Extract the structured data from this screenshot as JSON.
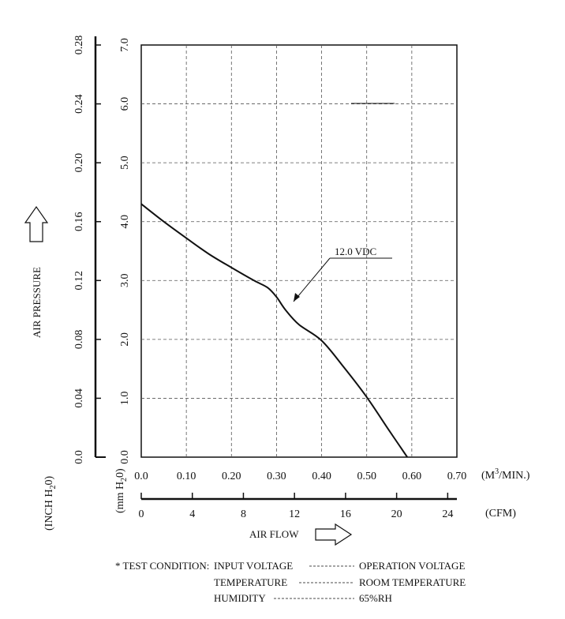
{
  "chart_data": {
    "type": "line",
    "xlabel": "AIR FLOW",
    "ylabel": "AIR PRESSURE",
    "x_unit_primary": "(M3/MIN.)",
    "x_unit_secondary": "(CFM)",
    "y_unit_primary": "(mm H2O)",
    "y_unit_secondary": "(INCH H2O)",
    "xlim": [
      0,
      0.7
    ],
    "ylim": [
      0,
      7.0
    ],
    "x_ticks": [
      "0.0",
      "0.10",
      "0.20",
      "0.30",
      "0.40",
      "0.50",
      "0.60",
      "0.70"
    ],
    "x_ticks_cfm": [
      "0",
      "4",
      "8",
      "12",
      "16",
      "20",
      "24"
    ],
    "y_ticks_mm": [
      "0.0",
      "1.0",
      "2.0",
      "3.0",
      "4.0",
      "5.0",
      "6.0",
      "7.0"
    ],
    "y_ticks_inch": [
      "0.0",
      "0.04",
      "0.08",
      "0.12",
      "0.16",
      "0.20",
      "0.24",
      "0.28"
    ],
    "grid": true,
    "series": [
      {
        "name": "12.0 VDC",
        "x": [
          0.0,
          0.05,
          0.1,
          0.15,
          0.2,
          0.25,
          0.28,
          0.3,
          0.32,
          0.35,
          0.4,
          0.45,
          0.5,
          0.55,
          0.59
        ],
        "y": [
          4.3,
          4.0,
          3.72,
          3.45,
          3.22,
          3.0,
          2.88,
          2.72,
          2.5,
          2.25,
          1.98,
          1.52,
          1.02,
          0.45,
          0.0
        ]
      }
    ]
  },
  "labels": {
    "y_axis_title": "AIR PRESSURE",
    "x_axis_title": "AIR FLOW",
    "m3min_unit": "(M",
    "m3min_sup": "3",
    "m3min_rest": "/MIN.)",
    "cfm_unit": "(CFM)",
    "mm_unit_a": "(mm H",
    "mm_unit_sub": "2",
    "mm_unit_b": "0)",
    "inch_unit_a": "(INCH H",
    "inch_unit_sub": "2",
    "inch_unit_b": "0)",
    "series_callout": "12.0 VDC"
  },
  "test_condition": {
    "prefix": "* TEST CONDITION:",
    "rows": [
      {
        "label": "INPUT VOLTAGE",
        "value": "OPERATION VOLTAGE"
      },
      {
        "label": "TEMPERATURE",
        "value": "ROOM TEMPERATURE"
      },
      {
        "label": "HUMIDITY",
        "value": "65%RH"
      }
    ]
  }
}
